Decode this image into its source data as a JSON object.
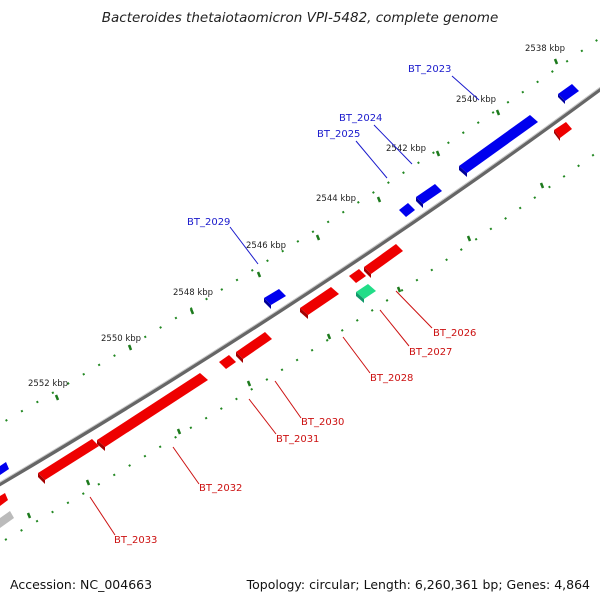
{
  "title": "Bacteroides thetaiotaomicron VPI-5482, complete genome",
  "footer": {
    "accession": "Accession: NC_004663",
    "summary": "Topology: circular; Length: 6,260,361 bp; Genes: 4,864"
  },
  "scale": {
    "ticks": [
      "2538 kbp",
      "2540 kbp",
      "2542 kbp",
      "2544 kbp",
      "2546 kbp",
      "2548 kbp",
      "2550 kbp",
      "2552 kbp"
    ]
  },
  "genes": [
    {
      "name": "BT_2023",
      "strand": "forward",
      "color": "#0000ee"
    },
    {
      "name": "BT_2024",
      "strand": "forward",
      "color": "#0000ee"
    },
    {
      "name": "BT_2025",
      "strand": "forward",
      "color": "#0000ee"
    },
    {
      "name": "BT_2029",
      "strand": "forward",
      "color": "#0000ee"
    },
    {
      "name": "BT_2026",
      "strand": "reverse",
      "color": "#ee0000"
    },
    {
      "name": "BT_2027",
      "strand": "reverse",
      "color": "#ee0000"
    },
    {
      "name": "BT_2028",
      "strand": "reverse",
      "color": "#ee0000"
    },
    {
      "name": "BT_2030",
      "strand": "reverse",
      "color": "#ee0000"
    },
    {
      "name": "BT_2031",
      "strand": "reverse",
      "color": "#ee0000"
    },
    {
      "name": "BT_2032",
      "strand": "reverse",
      "color": "#ee0000"
    },
    {
      "name": "BT_2033",
      "strand": "reverse",
      "color": "#ee0000"
    }
  ],
  "colors": {
    "forward_gene": "#0000ee",
    "reverse_gene": "#ee0000",
    "rna_gene": "#22dd88",
    "backbone": "#888888",
    "tick_mark": "#228822",
    "forward_label": "#1a1acc",
    "reverse_label": "#cc1111"
  }
}
